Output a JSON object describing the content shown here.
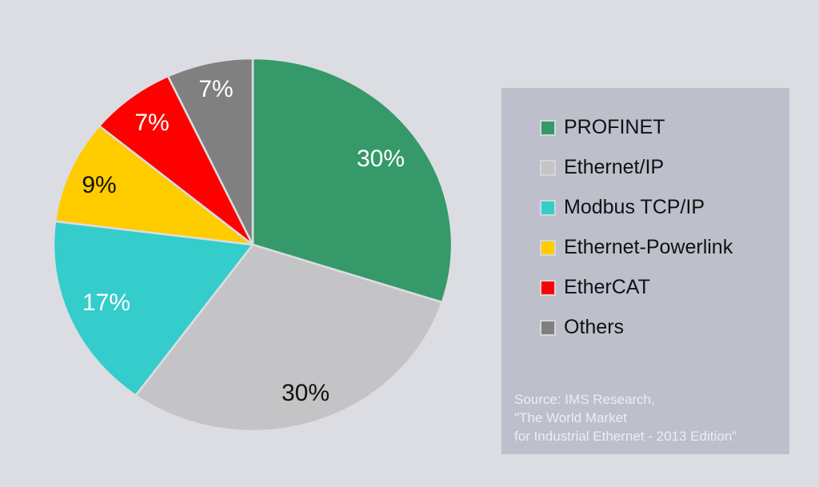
{
  "chart_data": {
    "type": "pie",
    "title": "",
    "categories": [
      "PROFINET",
      "Ethernet/IP",
      "Modbus TCP/IP",
      "Ethernet-Powerlink",
      "EtherCAT",
      "Others"
    ],
    "values": [
      30,
      30,
      17,
      9,
      7,
      7
    ],
    "labels": [
      "30%",
      "30%",
      "17%",
      "9%",
      "7%",
      "7%"
    ],
    "colors": [
      "#35996a",
      "#c4c4c6",
      "#35cccc",
      "#ffcc00",
      "#ff0000",
      "#808080"
    ],
    "label_colors": [
      "#ffffff",
      "#111111",
      "#ffffff",
      "#111111",
      "#ffffff",
      "#ffffff"
    ],
    "start_angle_deg": 0,
    "direction": "clockwise",
    "legend_position": "right"
  },
  "legend": {
    "items": [
      {
        "label": "PROFINET",
        "color": "#35996a"
      },
      {
        "label": "Ethernet/IP",
        "color": "#c4c4c6"
      },
      {
        "label": "Modbus TCP/IP",
        "color": "#35cccc"
      },
      {
        "label": "Ethernet-Powerlink",
        "color": "#ffcc00"
      },
      {
        "label": "EtherCAT",
        "color": "#ff0000"
      },
      {
        "label": "Others",
        "color": "#808080"
      }
    ]
  },
  "source": {
    "line1": "Source: IMS Research,",
    "line2": "\"The World Market",
    "line3": "for Industrial Ethernet - 2013 Edition\""
  }
}
